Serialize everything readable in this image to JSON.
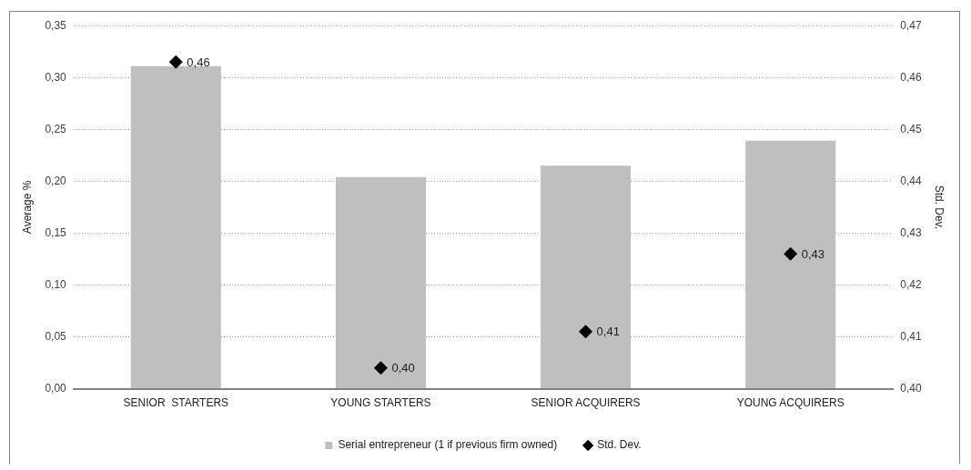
{
  "chart_data": {
    "type": "bar",
    "categories": [
      "SENIOR  STARTERS",
      "YOUNG STARTERS",
      "SENIOR ACQUIRERS",
      "YOUNG ACQUIRERS"
    ],
    "ylabel": "Average %",
    "y2label": "Std. Dev.",
    "series": [
      {
        "name": "Serial entrepreneur (1 if previous firm owned)",
        "color": "#bfbfbf",
        "values": [
          0.311,
          0.204,
          0.215,
          0.239
        ]
      },
      {
        "name": "Std. Dev.",
        "type": "scatter",
        "axis": "y2",
        "color": "#000000",
        "marker": "diamond",
        "values": [
          0.463,
          0.404,
          0.411,
          0.426
        ],
        "value_labels": [
          "0,46",
          "0,40",
          "0,41",
          "0,43"
        ]
      }
    ],
    "ylim": [
      0,
      0.35
    ],
    "yticks": [
      {
        "value": 0,
        "label": "0,00"
      },
      {
        "value": 0.05,
        "label": "0,05"
      },
      {
        "value": 0.1,
        "label": "0,10"
      },
      {
        "value": 0.15,
        "label": "0,15"
      },
      {
        "value": 0.2,
        "label": "0,20"
      },
      {
        "value": 0.25,
        "label": "0,25"
      },
      {
        "value": 0.3,
        "label": "0,30"
      },
      {
        "value": 0.35,
        "label": "0,35"
      }
    ],
    "y2lim": [
      0.4,
      0.47
    ],
    "y2ticks": [
      {
        "value": 0.4,
        "label": "0,40"
      },
      {
        "value": 0.41,
        "label": "0,41"
      },
      {
        "value": 0.42,
        "label": "0,42"
      },
      {
        "value": 0.43,
        "label": "0,43"
      },
      {
        "value": 0.44,
        "label": "0,44"
      },
      {
        "value": 0.45,
        "label": "0,45"
      },
      {
        "value": 0.46,
        "label": "0,46"
      },
      {
        "value": 0.47,
        "label": "0,47"
      }
    ],
    "grid": "y",
    "legend": "bottom"
  }
}
